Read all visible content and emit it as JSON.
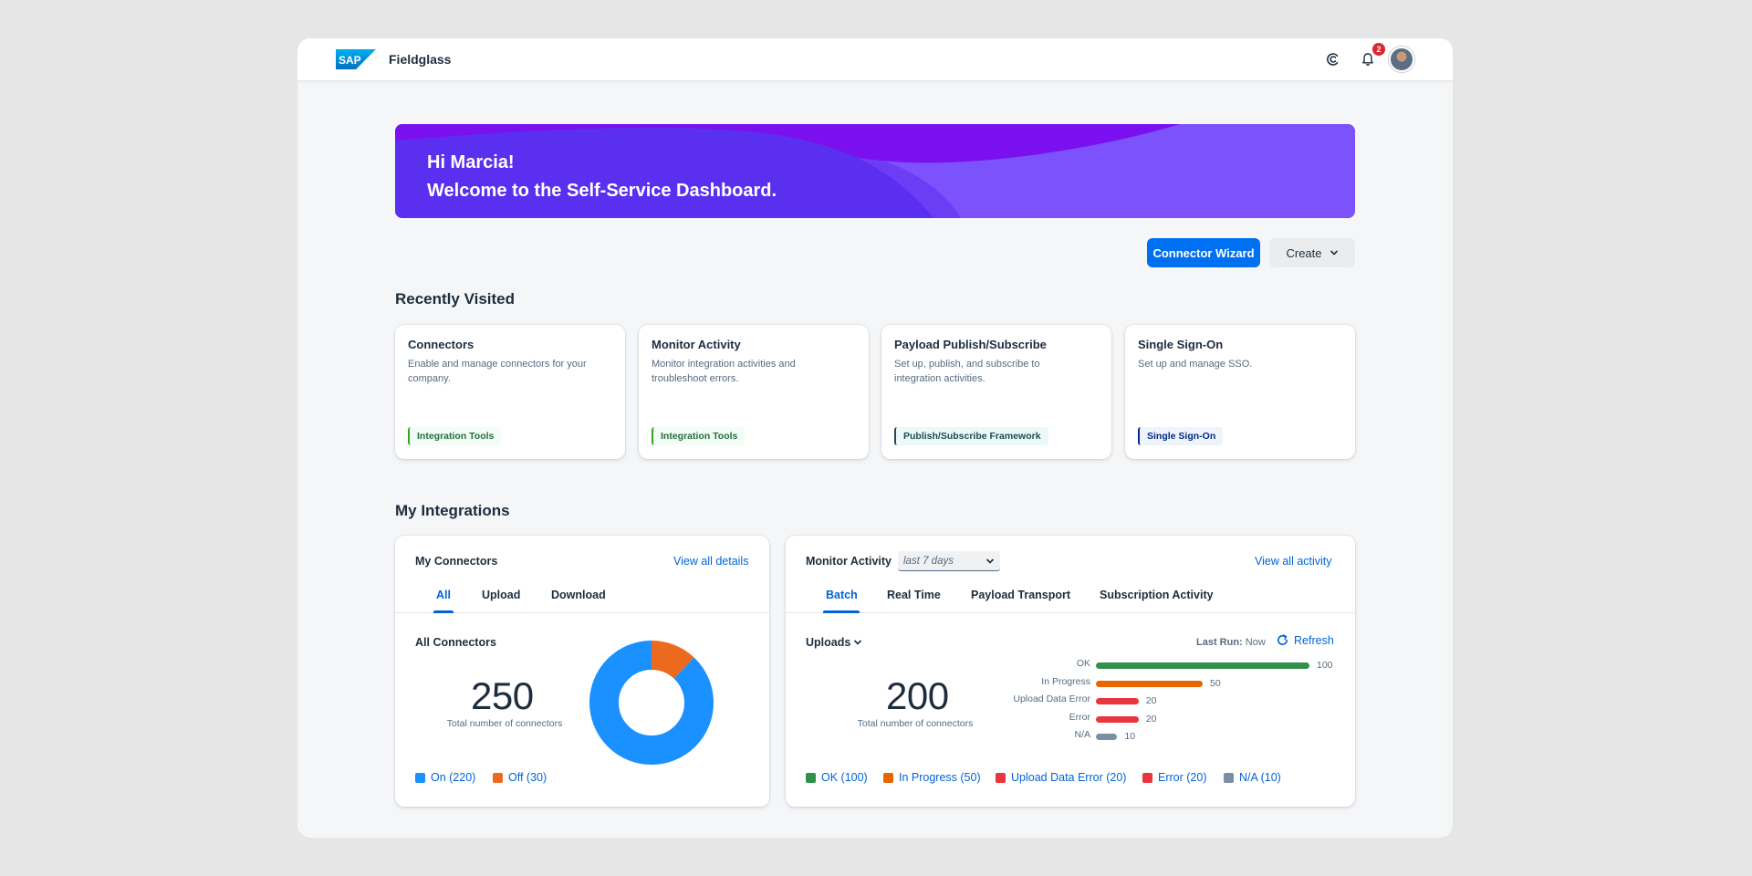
{
  "shell": {
    "logo_text": "SAP",
    "product": "Fieldglass",
    "notifications_count": "2"
  },
  "banner": {
    "greeting": "Hi Marcia!",
    "welcome": "Welcome to the Self-Service Dashboard."
  },
  "actions": {
    "primary_label": "Connector Wizard",
    "create_label": "Create"
  },
  "recently_visited": {
    "title": "Recently Visited",
    "cards": [
      {
        "title": "Connectors",
        "description": "Enable and manage connectors for your company.",
        "tag": "Integration Tools"
      },
      {
        "title": "Monitor Activity",
        "description": "Monitor integration activities and troubleshoot errors.",
        "tag": "Integration Tools"
      },
      {
        "title": "Payload Publish/Subscribe",
        "description": "Set up, publish, and subscribe to integration activities.",
        "tag": "Publish/Subscribe Framework"
      },
      {
        "title": "Single Sign-On",
        "description": "Set up and manage SSO.",
        "tag": "Single Sign-On"
      }
    ]
  },
  "integrations": {
    "title": "My Integrations",
    "connectors": {
      "title": "My Connectors",
      "link": "View all details",
      "tabs": [
        "All",
        "Upload",
        "Download"
      ],
      "sub_title": "All Connectors",
      "total": "250",
      "caption": "Total number of connectors",
      "legend": [
        {
          "label": "On (220)",
          "color": "#1b90ff"
        },
        {
          "label": "Off (30)",
          "color": "#ec6a1f"
        }
      ],
      "donut": {
        "on": 220,
        "off": 30
      }
    },
    "activity": {
      "title": "Monitor Activity",
      "period": "last 7 days",
      "link": "View all activity",
      "tabs": [
        "Batch",
        "Real Time",
        "Payload Transport",
        "Subscription Activity"
      ],
      "dropdown": "Uploads",
      "last_run_label": "Last Run:",
      "last_run_value": "Now",
      "refresh_label": "Refresh",
      "total": "200",
      "caption": "Total number of connectors",
      "bars": [
        {
          "label": "OK",
          "value": 100,
          "display": "100",
          "color": "#30914c"
        },
        {
          "label": "In Progress",
          "value": 50,
          "display": "50",
          "color": "#e76500"
        },
        {
          "label": "Upload Data Error",
          "value": 20,
          "display": "20",
          "color": "#e9353b"
        },
        {
          "label": "Error",
          "value": 20,
          "display": "20",
          "color": "#e9353b"
        },
        {
          "label": "N/A",
          "value": 10,
          "display": "10",
          "color": "#788fa6"
        }
      ],
      "legend": [
        {
          "label": "OK (100)",
          "color": "#30914c"
        },
        {
          "label": "In Progress (50)",
          "color": "#e76500"
        },
        {
          "label": "Upload Data Error (20)",
          "color": "#e9353b"
        },
        {
          "label": "Error (20)",
          "color": "#e9353b"
        },
        {
          "label": "N/A (10)",
          "color": "#788fa6"
        }
      ]
    }
  }
}
